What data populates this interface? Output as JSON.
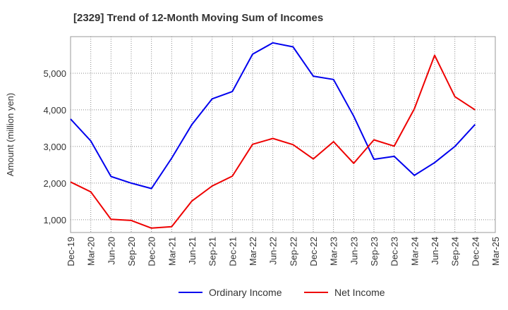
{
  "chart_data": {
    "type": "line",
    "title": "[2329]  Trend of 12-Month Moving Sum of Incomes",
    "xlabel": "",
    "ylabel": "Amount (million yen)",
    "ylim": [
      650,
      6000
    ],
    "yticks": [
      1000,
      2000,
      3000,
      4000,
      5000
    ],
    "ytick_labels": [
      "1,000",
      "2,000",
      "3,000",
      "4,000",
      "5,000"
    ],
    "categories": [
      "Dec-19",
      "Mar-20",
      "Jun-20",
      "Sep-20",
      "Dec-20",
      "Mar-21",
      "Jun-21",
      "Sep-21",
      "Dec-21",
      "Mar-22",
      "Jun-22",
      "Sep-22",
      "Dec-22",
      "Mar-23",
      "Jun-23",
      "Sep-23",
      "Dec-23",
      "Mar-24",
      "Jun-24",
      "Sep-24",
      "Dec-24",
      "Mar-25"
    ],
    "grid": true,
    "legend_position": "bottom",
    "series": [
      {
        "name": "Ordinary Income",
        "color": "#0000ee",
        "values": [
          3750,
          3150,
          2180,
          2000,
          1850,
          2680,
          3600,
          4300,
          4500,
          5520,
          5830,
          5720,
          4920,
          4830,
          3830,
          2650,
          2730,
          2210,
          2560,
          3000,
          3600,
          null
        ]
      },
      {
        "name": "Net Income",
        "color": "#ee0000",
        "values": [
          2030,
          1760,
          1010,
          980,
          770,
          810,
          1510,
          1920,
          2190,
          3060,
          3220,
          3050,
          2660,
          3130,
          2540,
          3180,
          3010,
          4030,
          5490,
          4360,
          4000,
          null
        ]
      }
    ]
  }
}
